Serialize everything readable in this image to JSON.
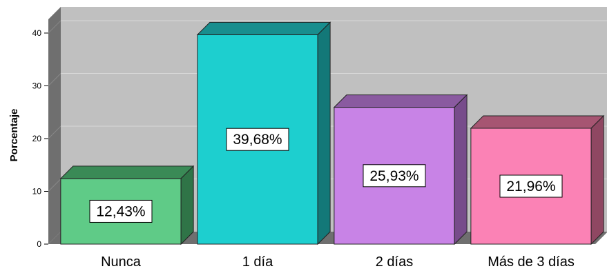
{
  "chart_data": {
    "type": "bar",
    "categories": [
      "Nunca",
      "1 día",
      "2 días",
      "Más de 3 días"
    ],
    "values": [
      12.43,
      39.68,
      25.93,
      21.96
    ],
    "data_labels": [
      "12,43%",
      "39,68%",
      "25,93%",
      "21,96%"
    ],
    "ylabel": "Porcentaje",
    "ylim": [
      0,
      43
    ],
    "yticks": [
      0,
      10,
      20,
      30,
      40
    ],
    "grid": true,
    "style": "3d",
    "colors": {
      "plot_background": "#c0c0c0",
      "wall_side": "#6f6f6f",
      "floor": "#6f6f6f",
      "grid": "#d8d8d8",
      "bars": [
        {
          "front": "#5fcb87",
          "top": "#3a8a56",
          "side": "#2f7447"
        },
        {
          "front": "#1dcfcf",
          "top": "#188e8e",
          "side": "#137878"
        },
        {
          "front": "#c883e6",
          "top": "#8a5aa0",
          "side": "#774c8b"
        },
        {
          "front": "#fb82b5",
          "top": "#a65572",
          "side": "#8f4762"
        }
      ]
    }
  }
}
